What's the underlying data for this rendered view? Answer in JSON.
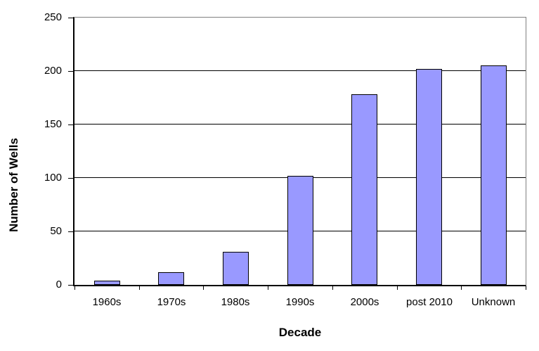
{
  "chart_data": {
    "type": "bar",
    "categories": [
      "1960s",
      "1970s",
      "1980s",
      "1990s",
      "2000s",
      "post 2010",
      "Unknown"
    ],
    "values": [
      4,
      12,
      31,
      102,
      178,
      202,
      205
    ],
    "title": "",
    "xlabel": "Decade",
    "ylabel": "Number of Wells",
    "ylim": [
      0,
      250
    ],
    "yticks": [
      0,
      50,
      100,
      150,
      200,
      250
    ],
    "grid": true,
    "legend": false,
    "bar_fill": "#9999ff",
    "bar_border": "#000000",
    "gridline_color": "#000000",
    "plot_border_color": "#808080",
    "axis_color": "#000000",
    "background": "#ffffff"
  }
}
